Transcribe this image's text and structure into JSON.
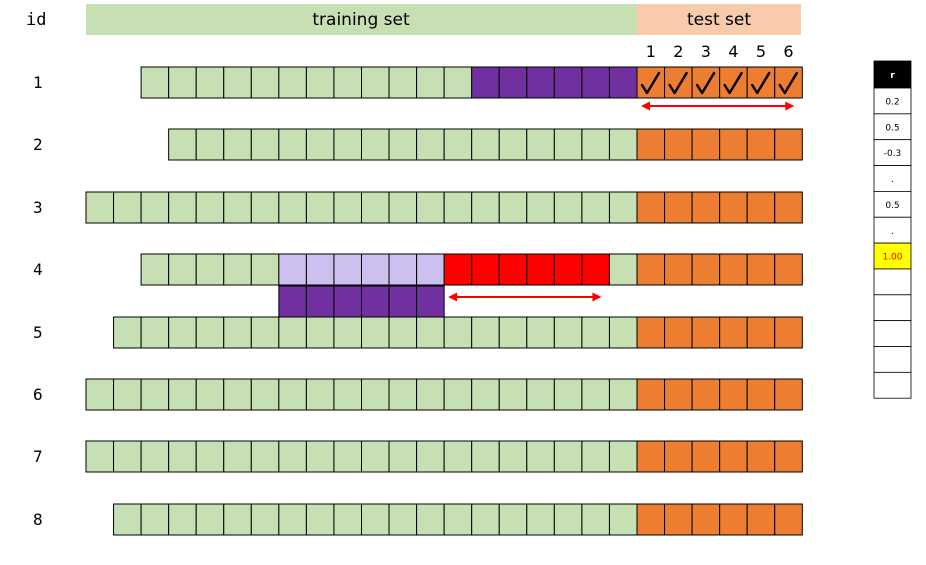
{
  "header": {
    "id_label": "id",
    "training_label": "training set",
    "test_label": "test set",
    "step_labels": [
      "1",
      "2",
      "3",
      "4",
      "5",
      "6"
    ]
  },
  "colors": {
    "train": "#c6e0b4",
    "train_header": "#c6e0b4",
    "test": "#ed7d31",
    "test_header": "#f8cbad",
    "purple_dark": "#7030a0",
    "purple_light": "#ccc0f0",
    "red": "#ff0000",
    "highlight": "#ffff00",
    "highlight_text": "#ff0000",
    "r_header_bg": "#000000",
    "r_header_text": "#ffffff",
    "arrow": "#ff0000"
  },
  "rows": [
    {
      "id": "1",
      "start": 2,
      "purple_dark": [
        14,
        19
      ],
      "checks": true,
      "test_arrow": true
    },
    {
      "id": "2",
      "start": 3
    },
    {
      "id": "3",
      "start": 0
    },
    {
      "id": "4",
      "start": 2,
      "purple_light": [
        7,
        12
      ],
      "red": [
        13,
        18
      ],
      "sub_purple": [
        7,
        12
      ],
      "sub_arrow": true
    },
    {
      "id": "5",
      "start": 1
    },
    {
      "id": "6",
      "start": 0
    },
    {
      "id": "7",
      "start": 0
    },
    {
      "id": "8",
      "start": 1
    }
  ],
  "r_table": {
    "header": "r",
    "values": [
      "0.2",
      "0.5",
      "-0.3",
      ".",
      "0.5",
      ".",
      "1.00",
      "",
      "",
      "",
      "",
      ""
    ],
    "highlight_index": 6
  }
}
